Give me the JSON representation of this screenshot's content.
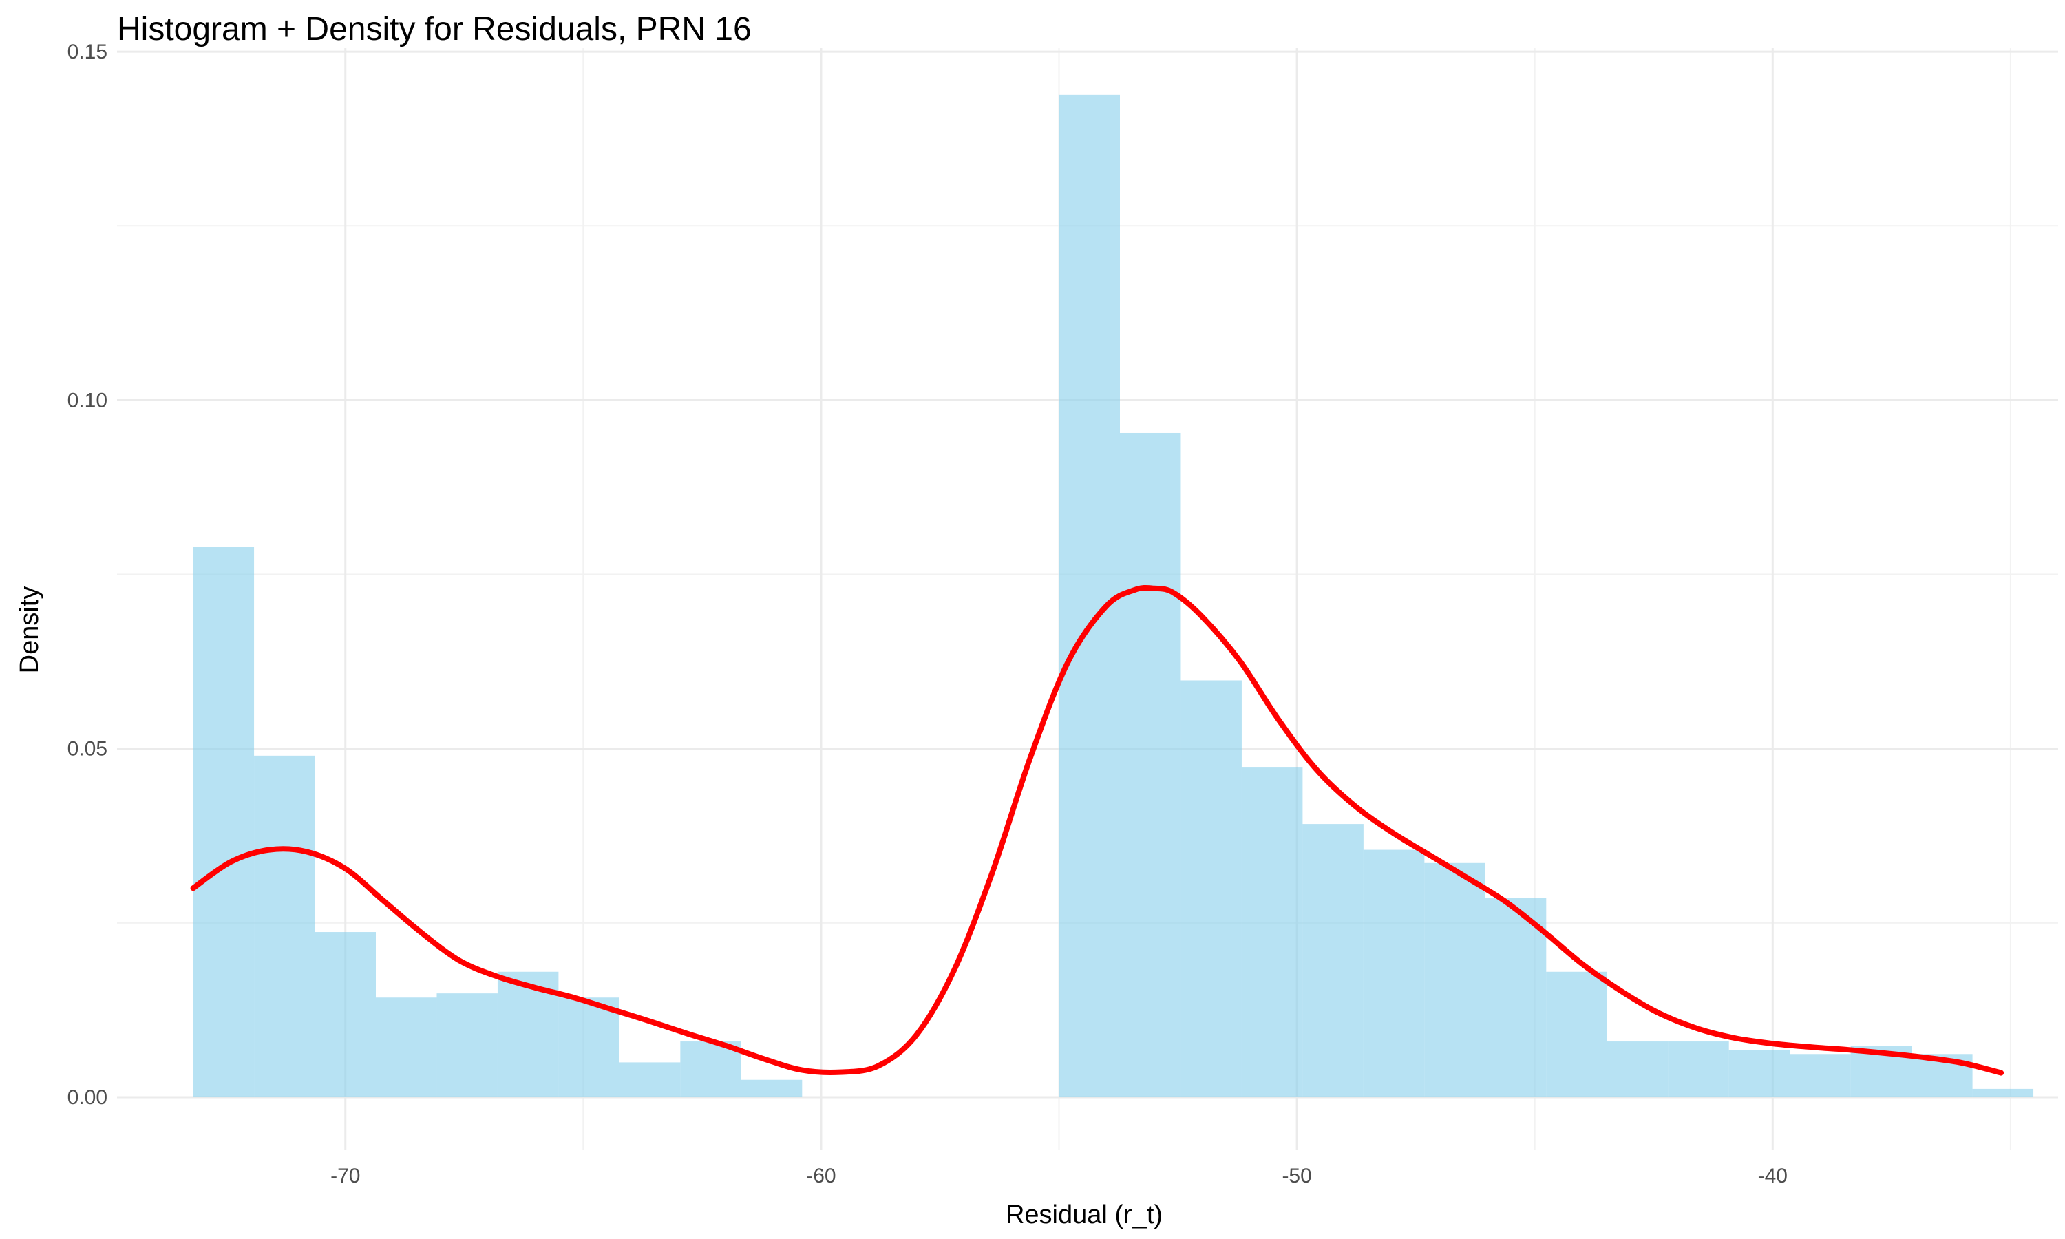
{
  "chart_data": {
    "type": "bar",
    "subtype": "histogram-with-density",
    "title": "Histogram + Density for Residuals, PRN 16",
    "xlabel": "Residual (r_t)",
    "ylabel": "Density",
    "xlim": [
      -74.8,
      -34.0
    ],
    "ylim": [
      -0.0075,
      0.1505
    ],
    "x_ticks": [
      -70,
      -60,
      -50,
      -40
    ],
    "x_tick_labels": [
      "-70",
      "-60",
      "-50",
      "-40"
    ],
    "y_ticks": [
      0.0,
      0.05,
      0.1,
      0.15
    ],
    "y_tick_labels": [
      "0.00",
      "0.05",
      "0.10",
      "0.15"
    ],
    "grid": true,
    "colors": {
      "bars": "#87ceeb",
      "density": "#ff0000",
      "grid": "#ebebeb"
    },
    "bins": [
      {
        "x0": -73.2,
        "x1": -71.92,
        "density": 0.079
      },
      {
        "x0": -71.92,
        "x1": -70.64,
        "density": 0.049
      },
      {
        "x0": -70.64,
        "x1": -69.36,
        "density": 0.0237
      },
      {
        "x0": -69.36,
        "x1": -68.08,
        "density": 0.0143
      },
      {
        "x0": -68.08,
        "x1": -66.8,
        "density": 0.0149
      },
      {
        "x0": -66.8,
        "x1": -65.52,
        "density": 0.018
      },
      {
        "x0": -65.52,
        "x1": -64.24,
        "density": 0.0143
      },
      {
        "x0": -64.24,
        "x1": -62.96,
        "density": 0.005
      },
      {
        "x0": -62.96,
        "x1": -61.68,
        "density": 0.008
      },
      {
        "x0": -61.68,
        "x1": -60.4,
        "density": 0.0025
      },
      {
        "x0": -60.4,
        "x1": -59.12,
        "density": 0.0
      },
      {
        "x0": -59.12,
        "x1": -57.84,
        "density": 0.0
      },
      {
        "x0": -57.84,
        "x1": -56.56,
        "density": 0.0
      },
      {
        "x0": -56.56,
        "x1": -55.28,
        "density": 0.0
      },
      {
        "x0": -55.0,
        "x1": -53.72,
        "density": 0.1438
      },
      {
        "x0": -53.72,
        "x1": -52.44,
        "density": 0.0953
      },
      {
        "x0": -52.44,
        "x1": -51.16,
        "density": 0.0598
      },
      {
        "x0": -51.16,
        "x1": -49.88,
        "density": 0.0473
      },
      {
        "x0": -49.88,
        "x1": -48.6,
        "density": 0.0392
      },
      {
        "x0": -48.6,
        "x1": -47.32,
        "density": 0.0355
      },
      {
        "x0": -47.32,
        "x1": -46.04,
        "density": 0.0336
      },
      {
        "x0": -46.04,
        "x1": -44.76,
        "density": 0.0286
      },
      {
        "x0": -44.76,
        "x1": -43.48,
        "density": 0.018
      },
      {
        "x0": -43.48,
        "x1": -42.2,
        "density": 0.008
      },
      {
        "x0": -42.2,
        "x1": -40.92,
        "density": 0.008
      },
      {
        "x0": -40.92,
        "x1": -39.64,
        "density": 0.0068
      },
      {
        "x0": -39.64,
        "x1": -38.36,
        "density": 0.0062
      },
      {
        "x0": -38.36,
        "x1": -37.08,
        "density": 0.0074
      },
      {
        "x0": -37.08,
        "x1": -35.8,
        "density": 0.0062
      },
      {
        "x0": -35.8,
        "x1": -34.52,
        "density": 0.0012
      }
    ],
    "density_curve": {
      "x": [
        -73.2,
        -72.4,
        -71.6,
        -70.8,
        -70.0,
        -69.2,
        -68.4,
        -67.6,
        -66.8,
        -66.0,
        -65.2,
        -64.4,
        -63.6,
        -62.8,
        -62.0,
        -61.2,
        -60.4,
        -59.6,
        -58.8,
        -58.0,
        -57.2,
        -56.4,
        -55.6,
        -54.8,
        -54.0,
        -53.4,
        -53.0,
        -52.6,
        -52.0,
        -51.2,
        -50.4,
        -49.6,
        -48.8,
        -48.0,
        -47.2,
        -46.4,
        -45.6,
        -44.8,
        -44.0,
        -43.2,
        -42.4,
        -41.6,
        -40.8,
        -40.0,
        -39.2,
        -38.4,
        -37.6,
        -36.8,
        -36.0,
        -35.2
      ],
      "y": [
        0.03,
        0.0338,
        0.0355,
        0.0352,
        0.0328,
        0.0282,
        0.0236,
        0.0196,
        0.0173,
        0.0157,
        0.0143,
        0.0126,
        0.0109,
        0.0091,
        0.0074,
        0.0055,
        0.0039,
        0.0036,
        0.0045,
        0.0089,
        0.0183,
        0.0323,
        0.0488,
        0.0626,
        0.0705,
        0.0728,
        0.073,
        0.0724,
        0.069,
        0.0626,
        0.0543,
        0.0471,
        0.0419,
        0.038,
        0.0347,
        0.0314,
        0.028,
        0.0237,
        0.0191,
        0.0153,
        0.0121,
        0.0099,
        0.0085,
        0.0077,
        0.0072,
        0.0068,
        0.0063,
        0.0057,
        0.0049,
        0.0035
      ]
    }
  }
}
